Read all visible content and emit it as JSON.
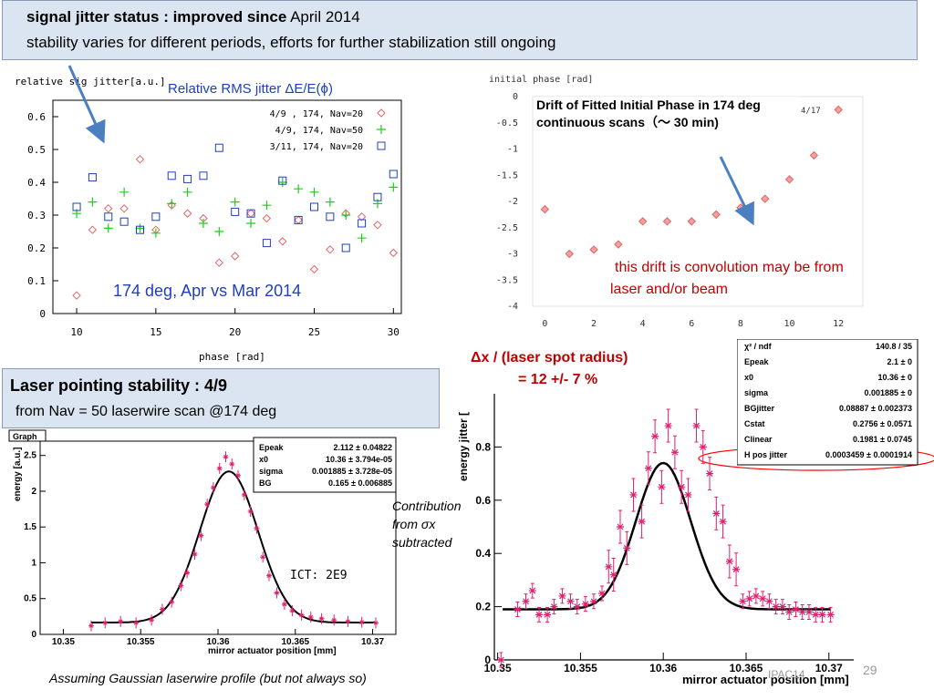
{
  "banner": {
    "line1_bold": "signal jitter status :  improved since",
    "line1_rest": " April 2014",
    "line2": "stability varies for different periods, efforts for further stabilization still ongoing"
  },
  "laser_box": {
    "title": "Laser pointing stability   :  4/9",
    "subtitle": "from Nav = 50 laserwire scan @174 deg"
  },
  "annotations": {
    "drift_note_1": "this drift is convolution may be from",
    "drift_note_2": "laser and/or  beam",
    "dx_line1": "Δx / (laser spot radius)",
    "dx_line2": "= 12 +/- 7 %",
    "contribution_1": "Contribution",
    "contribution_2": "from σx",
    "contribution_3": "subtracted",
    "ict": "ICT:  2E9",
    "footer": "Assuming Gaussian laserwire profile   (but not always so)",
    "page_label": "IPAC14",
    "page_number": "29"
  },
  "colors": {
    "banner_bg": "#dbe5f1",
    "marker_red": "#e06666",
    "marker_green": "#22cc22",
    "marker_blue": "#1f3fbf",
    "fit_line": "#000000",
    "data_pink": "#e0206e",
    "arrow_blue": "#4a7fc1",
    "arrow_red": "#ff0000"
  },
  "chart_data": [
    {
      "type": "scatter",
      "title": "Relative RMS jitter ΔE/E(ϕ)",
      "subtitle": "174 deg, Apr vs Mar 2014",
      "ylabel": "relative sig jitter[a.u.]",
      "xlabel": "phase [rad]",
      "xlim": [
        8.5,
        30.5
      ],
      "ylim": [
        0,
        0.65
      ],
      "xticks": [
        "10",
        "15",
        "20",
        "25",
        "30"
      ],
      "yticks": [
        "0",
        "0.1",
        "0.2",
        "0.3",
        "0.4",
        "0.5",
        "0.6"
      ],
      "legend_position": "top-right",
      "series": [
        {
          "name": "4/9 , 174, Nav=20",
          "marker": "diamond",
          "x": [
            10,
            11,
            12,
            13,
            14,
            15,
            16,
            17,
            18,
            19,
            20,
            21,
            22,
            23,
            24,
            25,
            26,
            27,
            28,
            29,
            30
          ],
          "y": [
            0.055,
            0.255,
            0.32,
            0.32,
            0.47,
            0.255,
            0.33,
            0.305,
            0.29,
            0.155,
            0.175,
            0.305,
            0.29,
            0.22,
            0.285,
            0.135,
            0.195,
            0.305,
            0.295,
            0.27,
            0.185
          ]
        },
        {
          "name": "4/9, 174, Nav=50",
          "marker": "plus",
          "x": [
            10,
            11,
            12,
            13,
            14,
            15,
            16,
            17,
            18,
            19,
            20,
            21,
            22,
            23,
            24,
            25,
            26,
            27,
            28,
            29,
            30
          ],
          "y": [
            0.305,
            0.34,
            0.26,
            0.37,
            0.26,
            0.245,
            0.335,
            0.37,
            0.275,
            0.25,
            0.34,
            0.275,
            0.33,
            0.4,
            0.38,
            0.37,
            0.34,
            0.3,
            0.23,
            0.335,
            0.385
          ]
        },
        {
          "name": "3/11, 174, Nav=20",
          "marker": "square",
          "x": [
            10,
            11,
            12,
            13,
            14,
            15,
            16,
            17,
            18,
            19,
            20,
            21,
            22,
            23,
            24,
            25,
            26,
            27,
            28,
            29,
            30
          ],
          "y": [
            0.325,
            0.415,
            0.295,
            0.28,
            0.255,
            0.295,
            0.42,
            0.41,
            0.42,
            0.505,
            0.31,
            0.305,
            0.215,
            0.405,
            0.285,
            0.325,
            0.295,
            0.2,
            0.275,
            0.355,
            0.425
          ]
        }
      ]
    },
    {
      "type": "scatter",
      "title": "Drift of Fitted Initial Phase in 174 deg continuous scans（〜 30 min)",
      "ylabel": "initial phase [rad]",
      "xlim": [
        -0.5,
        13
      ],
      "ylim": [
        -4,
        0
      ],
      "xticks": [
        "0",
        "2",
        "4",
        "6",
        "8",
        "10",
        "12"
      ],
      "yticks": [
        "0",
        "-0.5",
        "-1",
        "-1.5",
        "-2",
        "-2.5",
        "-3",
        "-3.5",
        "-4"
      ],
      "corner_label": "4/17",
      "x": [
        0,
        1,
        2,
        3,
        4,
        5,
        6,
        7,
        8,
        9,
        10,
        11,
        12
      ],
      "y": [
        -2.15,
        -3.0,
        -2.92,
        -2.82,
        -2.38,
        -2.38,
        -2.38,
        -2.25,
        -2.12,
        -1.95,
        -1.58,
        -1.12,
        -0.25
      ]
    },
    {
      "type": "scatter",
      "title": "Graph",
      "ylabel": "energy [a.u.]",
      "xlabel": "mirror actuator position [mm]",
      "xlim": [
        10.3485,
        10.3715
      ],
      "ylim": [
        0,
        2.7
      ],
      "xticks": [
        "10.35",
        "10.355",
        "10.36",
        "10.365",
        "10.37"
      ],
      "yticks": [
        "0",
        "0.5",
        "1",
        "1.5",
        "2",
        "2.5"
      ],
      "fit_params": [
        {
          "name": "Epeak",
          "value": "2.112 ± 0.04822"
        },
        {
          "name": "x0",
          "value": "10.36 ± 3.794e-05"
        },
        {
          "name": "sigma",
          "value": "0.001885 ± 3.728e-05"
        },
        {
          "name": "BG",
          "value": "0.165 ± 0.006885"
        }
      ],
      "fit": {
        "Epeak": 2.112,
        "x0": 10.3607,
        "sigma": 0.001885,
        "BG": 0.165
      },
      "x": [
        10.3518,
        10.3527,
        10.3537,
        10.3547,
        10.3557,
        10.3564,
        10.357,
        10.3576,
        10.358,
        10.3585,
        10.3589,
        10.3593,
        10.3597,
        10.3601,
        10.3605,
        10.3609,
        10.3613,
        10.3617,
        10.3621,
        10.3625,
        10.3629,
        10.3633,
        10.3638,
        10.3643,
        10.3648,
        10.3654,
        10.366,
        10.3667,
        10.3675,
        10.3684,
        10.3693,
        10.3702
      ],
      "y": [
        0.12,
        0.16,
        0.18,
        0.16,
        0.2,
        0.35,
        0.45,
        0.68,
        0.86,
        1.12,
        1.38,
        1.82,
        2.05,
        2.32,
        2.48,
        2.38,
        2.22,
        1.95,
        1.72,
        1.48,
        1.08,
        0.82,
        0.58,
        0.42,
        0.33,
        0.27,
        0.24,
        0.22,
        0.2,
        0.18,
        0.17,
        0.16
      ]
    },
    {
      "type": "scatter",
      "title": "Δx / (laser spot radius) = 12 +/- 7 %",
      "ylabel": "energy jitter [",
      "xlabel": "mirror actuator position [mm]",
      "xlim": [
        10.3498,
        10.3715
      ],
      "ylim": [
        0,
        1.0
      ],
      "xticks": [
        "10.35",
        "10.355",
        "10.36",
        "10.365",
        "10.37"
      ],
      "yticks": [
        "0",
        "0.2",
        "0.4",
        "0.6",
        "0.8"
      ],
      "fit_params": [
        {
          "name": "χ² / ndf",
          "value": "140.8 / 35"
        },
        {
          "name": "Epeak",
          "value": "2.1 ±    0"
        },
        {
          "name": "x0",
          "value": "10.36 ±    0"
        },
        {
          "name": "sigma",
          "value": "0.001885 ±    0"
        },
        {
          "name": "BGjitter",
          "value": "0.08887 ± 0.002373"
        },
        {
          "name": "Cstat",
          "value": "0.2756 ± 0.0571"
        },
        {
          "name": "Clinear",
          "value": "0.1981 ± 0.0745"
        },
        {
          "name": "H pos jitter",
          "value": "0.0003459 ± 0.0001914"
        }
      ],
      "fit": {
        "BG": 0.19,
        "peak": 0.74,
        "x0": 10.36,
        "sigma": 0.00165
      },
      "x": [
        10.3502,
        10.3512,
        10.3517,
        10.3521,
        10.3525,
        10.353,
        10.3534,
        10.3539,
        10.3544,
        10.3548,
        10.3553,
        10.3558,
        10.3563,
        10.3567,
        10.357,
        10.3574,
        10.3578,
        10.3582,
        10.3587,
        10.3591,
        10.3595,
        10.3599,
        10.3603,
        10.3607,
        10.3611,
        10.3615,
        10.362,
        10.3624,
        10.3628,
        10.3632,
        10.3636,
        10.364,
        10.3644,
        10.3648,
        10.3652,
        10.3656,
        10.366,
        10.3664,
        10.3668,
        10.3672,
        10.3676,
        10.368,
        10.3684,
        10.3688,
        10.3692,
        10.3696,
        10.3701
      ],
      "y": [
        0.0,
        0.19,
        0.22,
        0.26,
        0.17,
        0.17,
        0.2,
        0.24,
        0.22,
        0.2,
        0.21,
        0.22,
        0.25,
        0.35,
        0.32,
        0.5,
        0.42,
        0.62,
        0.52,
        0.72,
        0.84,
        0.65,
        0.88,
        0.78,
        0.65,
        0.62,
        0.88,
        0.8,
        0.7,
        0.55,
        0.52,
        0.37,
        0.34,
        0.22,
        0.23,
        0.24,
        0.23,
        0.22,
        0.2,
        0.2,
        0.18,
        0.19,
        0.18,
        0.18,
        0.17,
        0.17,
        0.17
      ]
    }
  ]
}
